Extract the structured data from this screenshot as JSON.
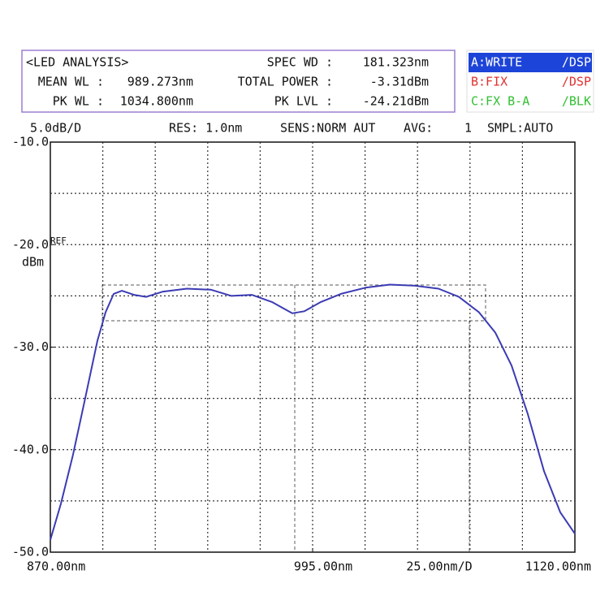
{
  "panel": {
    "title": "<LED ANALYSIS>",
    "rows": [
      {
        "label": "MEAN WL :",
        "value": "989.273nm"
      },
      {
        "label": "PK WL :",
        "value": "1034.800nm"
      }
    ],
    "rows_right": [
      {
        "label": "SPEC WD :",
        "value": "181.323nm"
      },
      {
        "label": "TOTAL POWER :",
        "value": "-3.31dBm"
      },
      {
        "label": "PK LVL :",
        "value": "-24.21dBm"
      }
    ],
    "traces": [
      {
        "name": "A:WRITE",
        "mode": "/DSP",
        "color": "#ffffff",
        "bg": "#1d44d8"
      },
      {
        "name": "B:FIX",
        "mode": "/DSP",
        "color": "#e03030",
        "bg": "none"
      },
      {
        "name": "C:FX B-A",
        "mode": "/BLK",
        "color": "#30c030",
        "bg": "none"
      }
    ],
    "status": [
      "5.0dB/D",
      "RES: 1.0nm",
      "SENS:NORM AUT",
      "AVG:",
      "1",
      "SMPL:AUTO"
    ]
  },
  "chart_data": {
    "type": "line",
    "y_label": "dBm",
    "ref_label": "REF",
    "x_scale_label": "25.00nm/D",
    "x": [
      870,
      875,
      880.8,
      886.6,
      892.4,
      896.3,
      900.2,
      904.1,
      909.9,
      915.7,
      923.4,
      935,
      946.6,
      956.3,
      966,
      975.6,
      985.3,
      991.1,
      998.9,
      1008.5,
      1020.2,
      1031.8,
      1043.4,
      1055,
      1064.7,
      1074.3,
      1082.1,
      1089.8,
      1097.5,
      1105.3,
      1113,
      1120
    ],
    "series": [
      {
        "color": "#3b3bb4",
        "values": [
          -48.8,
          -45.3,
          -40.5,
          -35.0,
          -29.4,
          -26.6,
          -24.8,
          -24.5,
          -24.9,
          -25.1,
          -24.6,
          -24.3,
          -24.4,
          -25.0,
          -24.9,
          -25.6,
          -26.7,
          -26.5,
          -25.6,
          -24.8,
          -24.2,
          -23.9,
          -24.0,
          -24.3,
          -25.1,
          -26.6,
          -28.6,
          -31.8,
          -36.5,
          -42.1,
          -46.1,
          -48.2
        ]
      }
    ],
    "xlim": [
      870,
      1120
    ],
    "xticks": [
      {
        "value": 870,
        "label": "870.00nm"
      },
      {
        "value": 995,
        "label": "995.00nm"
      },
      {
        "value": 1120,
        "label": "1120.00nm"
      }
    ],
    "ylim": [
      -50,
      -10
    ],
    "yticks": [
      {
        "value": -10,
        "label": "-10.0"
      },
      {
        "value": -20,
        "label": "-20.0"
      },
      {
        "value": -30,
        "label": "-30.0"
      },
      {
        "value": -40,
        "label": "-40.0"
      },
      {
        "value": -50,
        "label": "-50.0"
      }
    ],
    "grid": true
  }
}
